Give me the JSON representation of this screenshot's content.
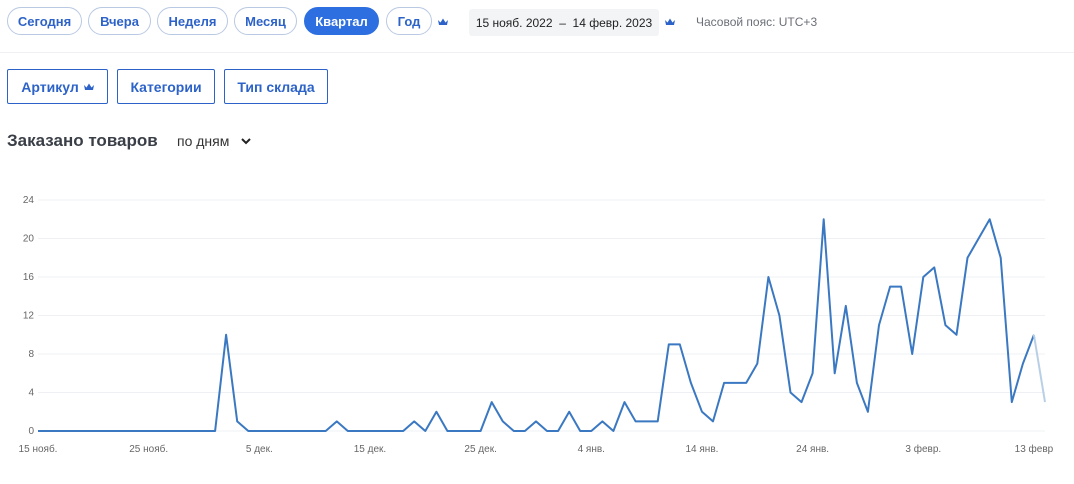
{
  "toolbar": {
    "periods": [
      "Сегодня",
      "Вчера",
      "Неделя",
      "Месяц",
      "Квартал",
      "Год"
    ],
    "active_period": "Квартал",
    "date_range": "15 нояб. 2022  –  14 февр. 2023",
    "timezone": "Часовой пояс: UTC+3"
  },
  "filters": {
    "article": "Артикул",
    "categories": "Категории",
    "warehouse_type": "Тип склада"
  },
  "chart_header": {
    "title": "Заказано товаров",
    "granularity": "по дням"
  },
  "colors": {
    "accent": "#2d6fe0",
    "line": "#3b78c2",
    "crown": "#2d63c8",
    "grid": "#eef0f3"
  },
  "chart_data": {
    "type": "line",
    "title": "",
    "xlabel": "",
    "ylabel": "",
    "ylim": [
      0,
      24
    ],
    "yticks": [
      0,
      4,
      8,
      12,
      16,
      20,
      24
    ],
    "xticks": [
      "15 нояб.",
      "25 нояб.",
      "5 дек.",
      "15 дек.",
      "25 дек.",
      "4 янв.",
      "14 янв.",
      "24 янв.",
      "3 февр.",
      "13 февр"
    ],
    "grid": true,
    "legend": "none",
    "x": [
      "15 нояб.",
      "16 нояб.",
      "17 нояб.",
      "18 нояб.",
      "19 нояб.",
      "20 нояб.",
      "21 нояб.",
      "22 нояб.",
      "23 нояб.",
      "24 нояб.",
      "25 нояб.",
      "26 нояб.",
      "27 нояб.",
      "28 нояб.",
      "29 нояб.",
      "30 нояб.",
      "1 дек.",
      "2 дек.",
      "3 дек.",
      "4 дек.",
      "5 дек.",
      "6 дек.",
      "7 дек.",
      "8 дек.",
      "9 дек.",
      "10 дек.",
      "11 дек.",
      "12 дек.",
      "13 дек.",
      "14 дек.",
      "15 дек.",
      "16 дек.",
      "17 дек.",
      "18 дек.",
      "19 дек.",
      "20 дек.",
      "21 дек.",
      "22 дек.",
      "23 дек.",
      "24 дек.",
      "25 дек.",
      "26 дек.",
      "27 дек.",
      "28 дек.",
      "29 дек.",
      "30 дек.",
      "31 дек.",
      "1 янв.",
      "2 янв.",
      "3 янв.",
      "4 янв.",
      "5 янв.",
      "6 янв.",
      "7 янв.",
      "8 янв.",
      "9 янв.",
      "10 янв.",
      "11 янв.",
      "12 янв.",
      "13 янв.",
      "14 янв.",
      "15 янв.",
      "16 янв.",
      "17 янв.",
      "18 янв.",
      "19 янв.",
      "20 янв.",
      "21 янв.",
      "22 янв.",
      "23 янв.",
      "24 янв.",
      "25 янв.",
      "26 янв.",
      "27 янв.",
      "28 янв.",
      "29 янв.",
      "30 янв.",
      "31 янв.",
      "1 февр.",
      "2 февр.",
      "3 февр.",
      "4 февр.",
      "5 февр.",
      "6 февр.",
      "7 февр.",
      "8 февр.",
      "9 февр.",
      "10 февр.",
      "11 февр.",
      "12 февр.",
      "13 февр.",
      "14 февр."
    ],
    "series": [
      {
        "values": [
          0,
          0,
          0,
          0,
          0,
          0,
          0,
          0,
          0,
          0,
          0,
          0,
          0,
          0,
          0,
          0,
          0,
          10,
          1,
          0,
          0,
          0,
          0,
          0,
          0,
          0,
          0,
          1,
          0,
          0,
          0,
          0,
          0,
          0,
          1,
          0,
          2,
          0,
          0,
          0,
          0,
          3,
          1,
          0,
          0,
          1,
          0,
          0,
          2,
          0,
          0,
          1,
          0,
          3,
          1,
          1,
          1,
          9,
          9,
          5,
          2,
          1,
          5,
          5,
          5,
          7,
          16,
          12,
          4,
          3,
          6,
          22,
          6,
          13,
          5,
          2,
          11,
          15,
          15,
          8,
          16,
          17,
          11,
          10,
          18,
          20,
          22,
          18,
          3,
          7,
          10,
          3
        ]
      }
    ]
  }
}
